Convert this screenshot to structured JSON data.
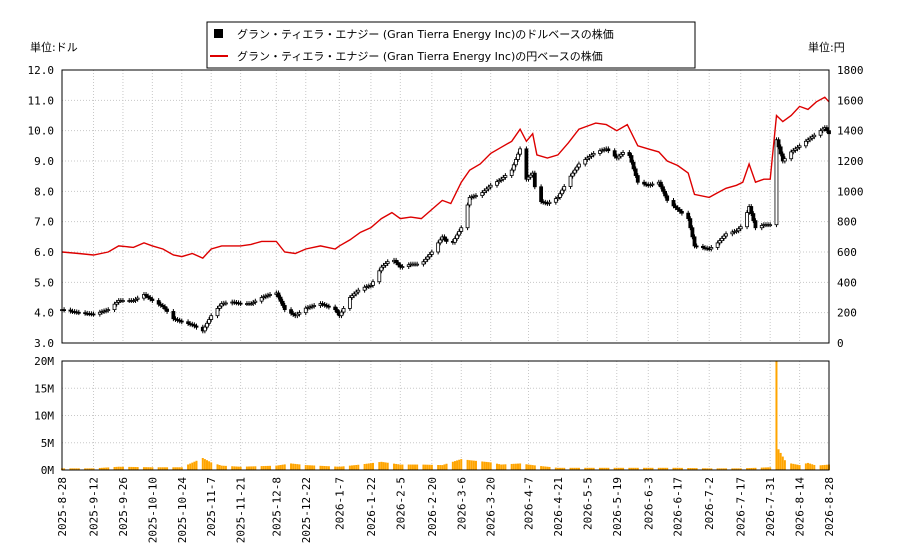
{
  "legend": {
    "usd_label": "グラン・ティエラ・エナジー (Gran Tierra Energy Inc)のドルベースの株価",
    "jpy_label": "グラン・ティエラ・エナジー (Gran Tierra Energy Inc)の円ベースの株価"
  },
  "colors": {
    "candle": "#000000",
    "jpy_line": "#dd0000",
    "volume": "#ffa500",
    "grid": "#c8c8c8"
  },
  "chart_data": [
    {
      "type": "candlestick",
      "ylabel_left": "単位:ドル",
      "ylabel_right": "単位:円",
      "ylim_left": [
        3.0,
        12.0
      ],
      "ylim_right": [
        0,
        1800
      ],
      "yticks_left": [
        "3.0",
        "4.0",
        "5.0",
        "6.0",
        "7.0",
        "8.0",
        "9.0",
        "10.0",
        "11.0",
        "12.0"
      ],
      "yticks_right": [
        "0",
        "200",
        "400",
        "600",
        "800",
        "1000",
        "1200",
        "1400",
        "1600",
        "1800"
      ],
      "x_range": [
        "2025-08-28",
        "2026-08-28"
      ],
      "xticks": [
        "2025-8-28",
        "2025-9-12",
        "2025-9-26",
        "2025-10-10",
        "2025-10-24",
        "2025-11-7",
        "2025-11-21",
        "2025-12-8",
        "2025-12-22",
        "2026-1-7",
        "2026-1-22",
        "2026-2-5",
        "2026-2-20",
        "2026-3-6",
        "2026-3-20",
        "2026-4-7",
        "2026-4-21",
        "2026-5-5",
        "2026-5-19",
        "2026-6-3",
        "2026-6-17",
        "2026-7-2",
        "2026-7-17",
        "2026-7-31",
        "2026-8-14",
        "2026-8-28"
      ],
      "grid": true,
      "usd_close_points": [
        [
          "2025-08-28",
          4.1
        ],
        [
          "2025-09-05",
          4.0
        ],
        [
          "2025-09-12",
          3.95
        ],
        [
          "2025-09-19",
          4.1
        ],
        [
          "2025-09-24",
          4.4
        ],
        [
          "2025-10-01",
          4.4
        ],
        [
          "2025-10-06",
          4.6
        ],
        [
          "2025-10-10",
          4.4
        ],
        [
          "2025-10-15",
          4.2
        ],
        [
          "2025-10-20",
          3.8
        ],
        [
          "2025-10-24",
          3.7
        ],
        [
          "2025-10-29",
          3.6
        ],
        [
          "2025-11-03",
          3.4
        ],
        [
          "2025-11-07",
          3.9
        ],
        [
          "2025-11-12",
          4.3
        ],
        [
          "2025-11-17",
          4.35
        ],
        [
          "2025-11-21",
          4.3
        ],
        [
          "2025-11-26",
          4.3
        ],
        [
          "2025-12-01",
          4.5
        ],
        [
          "2025-12-05",
          4.6
        ],
        [
          "2025-12-08",
          4.65
        ],
        [
          "2025-12-12",
          4.1
        ],
        [
          "2025-12-17",
          3.9
        ],
        [
          "2025-12-22",
          4.15
        ],
        [
          "2025-12-29",
          4.3
        ],
        [
          "2026-01-05",
          4.1
        ],
        [
          "2026-01-07",
          3.9
        ],
        [
          "2026-01-12",
          4.5
        ],
        [
          "2026-01-17",
          4.8
        ],
        [
          "2026-01-22",
          4.9
        ],
        [
          "2026-01-27",
          5.5
        ],
        [
          "2026-02-01",
          5.8
        ],
        [
          "2026-02-05",
          5.5
        ],
        [
          "2026-02-10",
          5.6
        ],
        [
          "2026-02-15",
          5.6
        ],
        [
          "2026-02-20",
          6.0
        ],
        [
          "2026-02-25",
          6.5
        ],
        [
          "2026-03-01",
          6.2
        ],
        [
          "2026-03-06",
          6.8
        ],
        [
          "2026-03-10",
          7.8
        ],
        [
          "2026-03-15",
          7.9
        ],
        [
          "2026-03-20",
          8.2
        ],
        [
          "2026-03-25",
          8.4
        ],
        [
          "2026-03-30",
          8.7
        ],
        [
          "2026-04-03",
          9.4
        ],
        [
          "2026-04-06",
          8.4
        ],
        [
          "2026-04-09",
          8.6
        ],
        [
          "2026-04-11",
          7.7
        ],
        [
          "2026-04-16",
          7.6
        ],
        [
          "2026-04-21",
          7.8
        ],
        [
          "2026-04-26",
          8.4
        ],
        [
          "2026-05-01",
          8.9
        ],
        [
          "2026-05-05",
          9.1
        ],
        [
          "2026-05-09",
          9.3
        ],
        [
          "2026-05-14",
          9.4
        ],
        [
          "2026-05-19",
          9.1
        ],
        [
          "2026-05-24",
          9.4
        ],
        [
          "2026-05-29",
          8.3
        ],
        [
          "2026-06-03",
          8.2
        ],
        [
          "2026-06-08",
          8.3
        ],
        [
          "2026-06-12",
          7.7
        ],
        [
          "2026-06-17",
          7.4
        ],
        [
          "2026-06-22",
          7.1
        ],
        [
          "2026-06-25",
          6.2
        ],
        [
          "2026-07-02",
          6.1
        ],
        [
          "2026-07-06",
          6.3
        ],
        [
          "2026-07-10",
          6.6
        ],
        [
          "2026-07-15",
          6.7
        ],
        [
          "2026-07-18",
          6.9
        ],
        [
          "2026-07-21",
          7.5
        ],
        [
          "2026-07-24",
          6.8
        ],
        [
          "2026-07-28",
          6.9
        ],
        [
          "2026-07-31",
          6.9
        ],
        [
          "2026-08-03",
          9.7
        ],
        [
          "2026-08-06",
          9.0
        ],
        [
          "2026-08-10",
          9.3
        ],
        [
          "2026-08-14",
          9.5
        ],
        [
          "2026-08-18",
          9.7
        ],
        [
          "2026-08-22",
          9.9
        ],
        [
          "2026-08-26",
          10.1
        ],
        [
          "2026-08-28",
          9.9
        ]
      ],
      "jpy_line_points": [
        [
          "2025-08-28",
          600
        ],
        [
          "2025-09-05",
          590
        ],
        [
          "2025-09-12",
          580
        ],
        [
          "2025-09-19",
          600
        ],
        [
          "2025-09-24",
          640
        ],
        [
          "2025-10-01",
          630
        ],
        [
          "2025-10-06",
          660
        ],
        [
          "2025-10-10",
          640
        ],
        [
          "2025-10-15",
          620
        ],
        [
          "2025-10-20",
          580
        ],
        [
          "2025-10-24",
          570
        ],
        [
          "2025-10-29",
          590
        ],
        [
          "2025-11-03",
          560
        ],
        [
          "2025-11-07",
          620
        ],
        [
          "2025-11-12",
          640
        ],
        [
          "2025-11-17",
          640
        ],
        [
          "2025-11-21",
          640
        ],
        [
          "2025-11-26",
          650
        ],
        [
          "2025-12-01",
          670
        ],
        [
          "2025-12-05",
          670
        ],
        [
          "2025-12-08",
          670
        ],
        [
          "2025-12-12",
          600
        ],
        [
          "2025-12-17",
          590
        ],
        [
          "2025-12-22",
          620
        ],
        [
          "2025-12-29",
          640
        ],
        [
          "2026-01-05",
          620
        ],
        [
          "2026-01-07",
          640
        ],
        [
          "2026-01-12",
          680
        ],
        [
          "2026-01-17",
          730
        ],
        [
          "2026-01-22",
          760
        ],
        [
          "2026-01-27",
          820
        ],
        [
          "2026-02-01",
          860
        ],
        [
          "2026-02-05",
          820
        ],
        [
          "2026-02-10",
          830
        ],
        [
          "2026-02-15",
          820
        ],
        [
          "2026-02-20",
          880
        ],
        [
          "2026-02-25",
          940
        ],
        [
          "2026-03-01",
          920
        ],
        [
          "2026-03-06",
          1060
        ],
        [
          "2026-03-10",
          1140
        ],
        [
          "2026-03-15",
          1180
        ],
        [
          "2026-03-20",
          1250
        ],
        [
          "2026-03-25",
          1290
        ],
        [
          "2026-03-30",
          1330
        ],
        [
          "2026-04-03",
          1410
        ],
        [
          "2026-04-06",
          1330
        ],
        [
          "2026-04-09",
          1380
        ],
        [
          "2026-04-11",
          1240
        ],
        [
          "2026-04-16",
          1220
        ],
        [
          "2026-04-21",
          1240
        ],
        [
          "2026-04-26",
          1320
        ],
        [
          "2026-05-01",
          1410
        ],
        [
          "2026-05-05",
          1430
        ],
        [
          "2026-05-09",
          1450
        ],
        [
          "2026-05-14",
          1440
        ],
        [
          "2026-05-19",
          1400
        ],
        [
          "2026-05-24",
          1440
        ],
        [
          "2026-05-29",
          1300
        ],
        [
          "2026-06-03",
          1280
        ],
        [
          "2026-06-08",
          1260
        ],
        [
          "2026-06-12",
          1200
        ],
        [
          "2026-06-17",
          1170
        ],
        [
          "2026-06-22",
          1120
        ],
        [
          "2026-06-25",
          980
        ],
        [
          "2026-07-02",
          960
        ],
        [
          "2026-07-06",
          990
        ],
        [
          "2026-07-10",
          1020
        ],
        [
          "2026-07-15",
          1040
        ],
        [
          "2026-07-18",
          1060
        ],
        [
          "2026-07-21",
          1180
        ],
        [
          "2026-07-24",
          1060
        ],
        [
          "2026-07-28",
          1080
        ],
        [
          "2026-07-31",
          1080
        ],
        [
          "2026-08-03",
          1500
        ],
        [
          "2026-08-06",
          1460
        ],
        [
          "2026-08-10",
          1500
        ],
        [
          "2026-08-14",
          1560
        ],
        [
          "2026-08-18",
          1540
        ],
        [
          "2026-08-22",
          1590
        ],
        [
          "2026-08-26",
          1620
        ],
        [
          "2026-08-28",
          1590
        ]
      ]
    },
    {
      "type": "bar",
      "ylim": [
        0,
        20
      ],
      "yticks": [
        "0M",
        "5M",
        "10M",
        "15M",
        "20M"
      ],
      "grid": true,
      "volume_points_millions": [
        [
          "2025-08-28",
          0.3
        ],
        [
          "2025-09-12",
          0.3
        ],
        [
          "2025-09-24",
          0.6
        ],
        [
          "2025-10-10",
          0.5
        ],
        [
          "2025-10-24",
          0.5
        ],
        [
          "2025-11-03",
          2.2
        ],
        [
          "2025-11-07",
          1.4
        ],
        [
          "2025-11-12",
          0.8
        ],
        [
          "2025-11-21",
          0.6
        ],
        [
          "2025-12-08",
          0.8
        ],
        [
          "2025-12-15",
          1.2
        ],
        [
          "2025-12-22",
          0.9
        ],
        [
          "2026-01-07",
          0.6
        ],
        [
          "2026-01-17",
          1.0
        ],
        [
          "2026-01-27",
          1.5
        ],
        [
          "2026-02-05",
          1.0
        ],
        [
          "2026-02-15",
          1.0
        ],
        [
          "2026-02-25",
          0.9
        ],
        [
          "2026-03-06",
          2.0
        ],
        [
          "2026-03-10",
          1.8
        ],
        [
          "2026-03-20",
          1.4
        ],
        [
          "2026-03-25",
          1.0
        ],
        [
          "2026-04-03",
          1.2
        ],
        [
          "2026-04-11",
          0.8
        ],
        [
          "2026-04-21",
          0.4
        ],
        [
          "2026-05-05",
          0.4
        ],
        [
          "2026-05-19",
          0.4
        ],
        [
          "2026-06-03",
          0.4
        ],
        [
          "2026-06-17",
          0.4
        ],
        [
          "2026-07-02",
          0.3
        ],
        [
          "2026-07-17",
          0.3
        ],
        [
          "2026-07-31",
          0.5
        ],
        [
          "2026-08-03",
          20.0
        ],
        [
          "2026-08-04",
          3.8
        ],
        [
          "2026-08-07",
          1.8
        ],
        [
          "2026-08-10",
          1.2
        ],
        [
          "2026-08-14",
          0.9
        ],
        [
          "2026-08-18",
          1.3
        ],
        [
          "2026-08-22",
          0.8
        ],
        [
          "2026-08-28",
          1.0
        ]
      ]
    }
  ]
}
